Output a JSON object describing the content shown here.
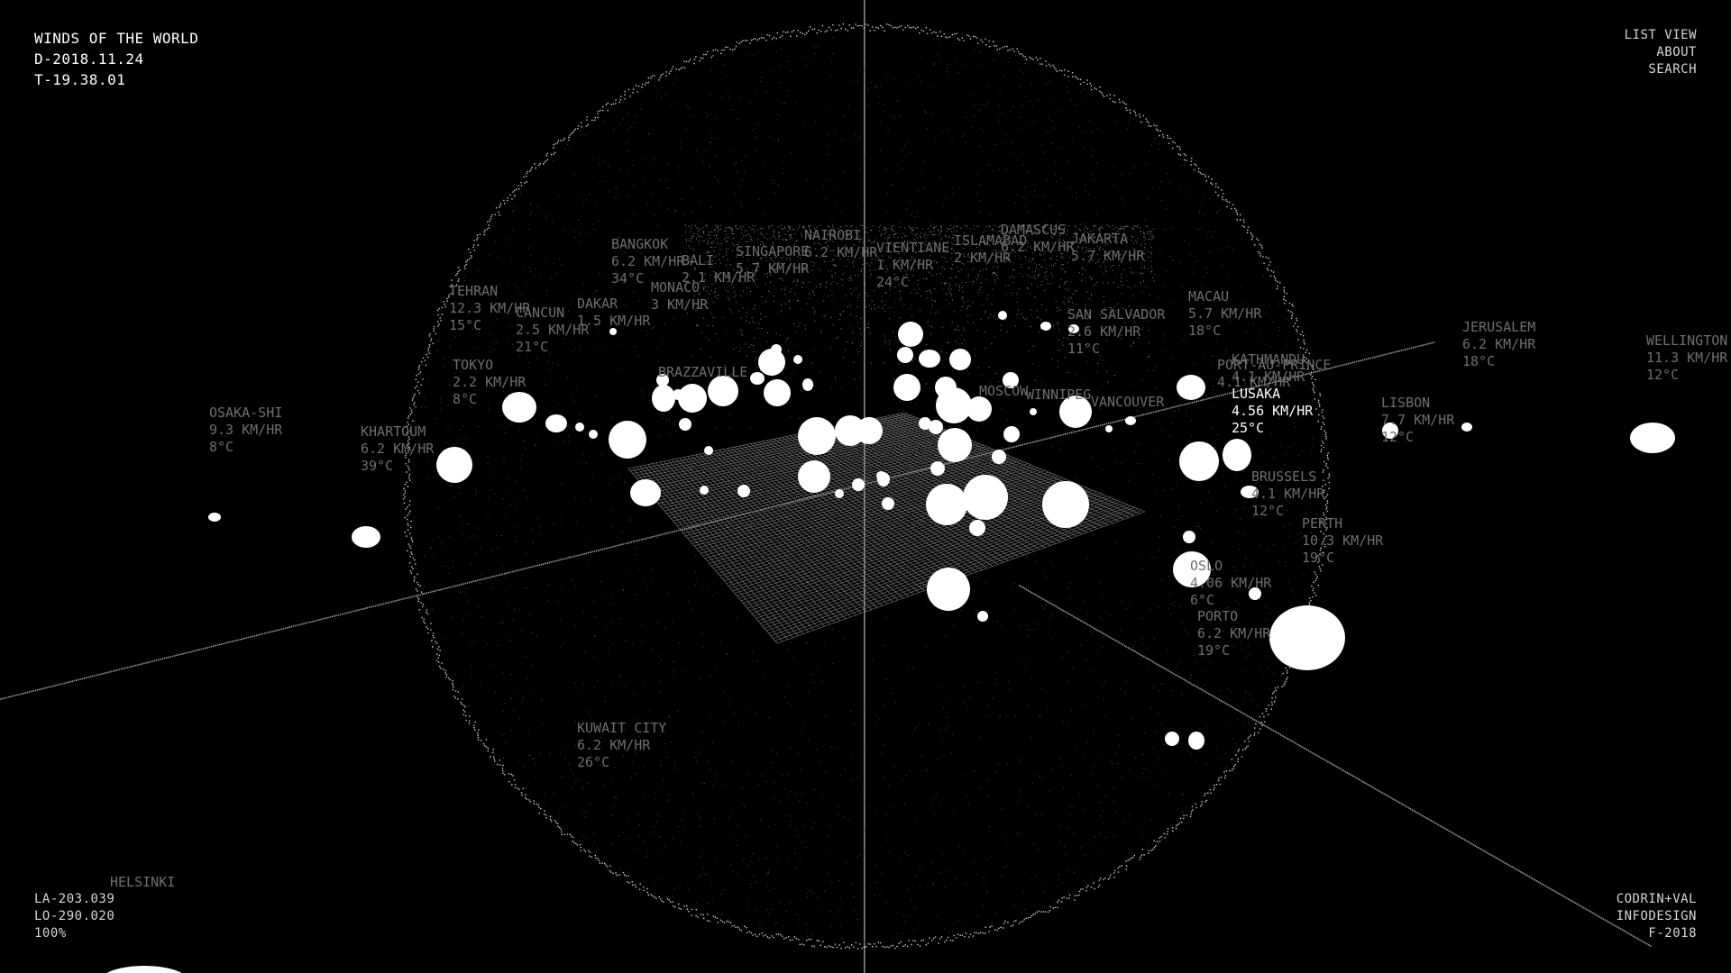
{
  "header": {
    "title": "WINDS OF THE WORLD",
    "date": "D-2018.11.24",
    "time": "T-19.38.01"
  },
  "nav": {
    "list_view": "LIST VIEW",
    "about": "ABOUT",
    "search": "SEARCH"
  },
  "camera": {
    "latitude": "LA-203.039",
    "longitude": "LO-290.020",
    "zoom": "100%"
  },
  "credits": {
    "authors": "CODRIN+VAL",
    "studio": "INFODESIGN",
    "year": "F-2018"
  },
  "colors": {
    "background": "#000000",
    "point": "#ffffff",
    "label": "#6e6e6e",
    "active_label": "#ffffff"
  },
  "selected_city": "LUSAKA",
  "cities": [
    {
      "name": "LUSAKA",
      "wind": "4.56 KM/HR",
      "temp": "25°C",
      "active": true
    },
    {
      "name": "BANGKOK",
      "wind": "6.2 KM/HR",
      "temp": "34°C"
    },
    {
      "name": "BALI",
      "wind": "2.1 KM/HR",
      "temp": ""
    },
    {
      "name": "SINGAPORE",
      "wind": "5.7 KM/HR",
      "temp": ""
    },
    {
      "name": "NAIROBI",
      "wind": "6.2 KM/HR",
      "temp": ""
    },
    {
      "name": "VIENTIANE",
      "wind": "1 KM/HR",
      "temp": "24°C"
    },
    {
      "name": "ISLAMABAD",
      "wind": "2 KM/HR",
      "temp": ""
    },
    {
      "name": "DAMASCUS",
      "wind": "6.2 KM/HR",
      "temp": ""
    },
    {
      "name": "JAKARTA",
      "wind": "5.7 KM/HR",
      "temp": ""
    },
    {
      "name": "TEHRAN",
      "wind": "12.3 KM/HR",
      "temp": "15°C"
    },
    {
      "name": "CANCUN",
      "wind": "2.5 KM/HR",
      "temp": "21°C"
    },
    {
      "name": "DAKAR",
      "wind": "1.5 KM/HR",
      "temp": ""
    },
    {
      "name": "MONACO",
      "wind": "3 KM/HR",
      "temp": ""
    },
    {
      "name": "TOKYO",
      "wind": "2.2 KM/HR",
      "temp": "8°C"
    },
    {
      "name": "MACAU",
      "wind": "5.7 KM/HR",
      "temp": "18°C"
    },
    {
      "name": "SAN SALVADOR",
      "wind": "2.6 KM/HR",
      "temp": "11°C"
    },
    {
      "name": "KATHMANDU",
      "wind": "4.1 KM/HR",
      "temp": ""
    },
    {
      "name": "PORT-AU-PRINCE",
      "wind": "4.1 KM/HR",
      "temp": ""
    },
    {
      "name": "JERUSALEM",
      "wind": "6.2 KM/HR",
      "temp": "18°C"
    },
    {
      "name": "WELLINGTON",
      "wind": "11.3 KM/HR",
      "temp": "12°C"
    },
    {
      "name": "OSAKA-SHI",
      "wind": "9.3 KM/HR",
      "temp": "8°C"
    },
    {
      "name": "KHARTOUM",
      "wind": "6.2 KM/HR",
      "temp": "39°C"
    },
    {
      "name": "LISBON",
      "wind": "7.7 KM/HR",
      "temp": "12°C"
    },
    {
      "name": "BRUSSELS",
      "wind": "4.1 KM/HR",
      "temp": "12°C"
    },
    {
      "name": "PERTH",
      "wind": "10.3 KM/HR",
      "temp": "19°C"
    },
    {
      "name": "OSLO",
      "wind": "4.06 KM/HR",
      "temp": "6°C"
    },
    {
      "name": "PORTO",
      "wind": "6.2 KM/HR",
      "temp": "19°C"
    },
    {
      "name": "KUWAIT CITY",
      "wind": "6.2 KM/HR",
      "temp": "26°C"
    },
    {
      "name": "HELSINKI",
      "wind": "",
      "temp": ""
    },
    {
      "name": "MOSCOW",
      "wind": "",
      "temp": ""
    },
    {
      "name": "WINNIPEG",
      "wind": "",
      "temp": ""
    },
    {
      "name": "VANCOUVER",
      "wind": "",
      "temp": ""
    },
    {
      "name": "BRAZZAVILLE",
      "wind": "",
      "temp": ""
    }
  ]
}
